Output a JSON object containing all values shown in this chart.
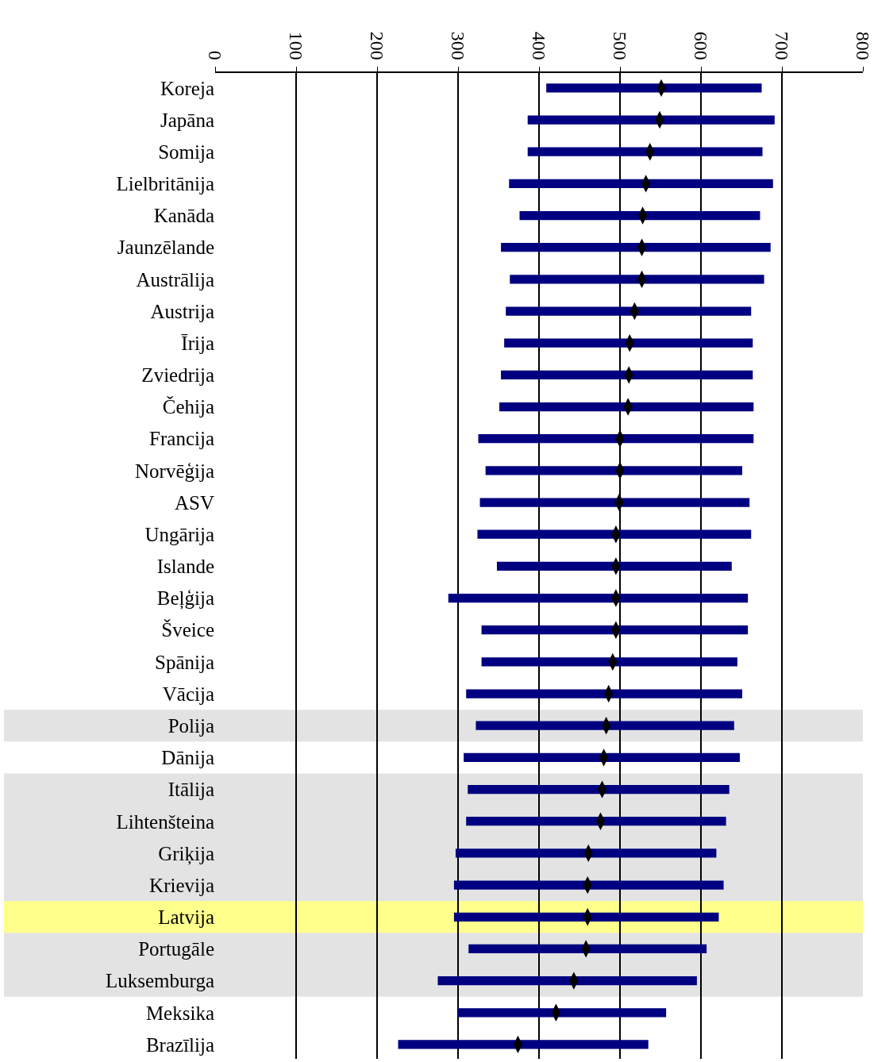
{
  "chart_data": {
    "type": "bar",
    "orientation": "horizontal",
    "categories": [
      "Koreja",
      "Japāna",
      "Somija",
      "Lielbritānija",
      "Kanāda",
      "Jaunzēlande",
      "Austrālija",
      "Austrija",
      "Īrija",
      "Zviedrija",
      "Čehija",
      "Francija",
      "Norvēģija",
      "ASV",
      "Ungārija",
      "Islande",
      "Beļģija",
      "Šveice",
      "Spānija",
      "Vācija",
      "Polija",
      "Dānija",
      "Itālija",
      "Lihtenšteina",
      "Griķija",
      "Krievija",
      "Latvija",
      "Portugāle",
      "Luksemburga",
      "Meksika",
      "Brazīlija"
    ],
    "series": [
      {
        "type": "bar",
        "color": "#000080",
        "base": [
          409,
          386,
          386,
          363,
          376,
          353,
          364,
          359,
          357,
          353,
          351,
          325,
          334,
          327,
          324,
          348,
          288,
          329,
          329,
          310,
          322,
          307,
          312,
          310,
          297,
          295,
          295,
          313,
          275,
          300,
          226
        ],
        "values": [
          266,
          305,
          290,
          326,
          297,
          333,
          314,
          303,
          307,
          311,
          314,
          340,
          317,
          333,
          338,
          290,
          370,
          329,
          316,
          341,
          319,
          341,
          323,
          321,
          322,
          333,
          327,
          294,
          320,
          257,
          309
        ]
      },
      {
        "type": "scatter",
        "color": "#000000",
        "marker": "diamond",
        "x": [
          "Koreja",
          "Japāna",
          "Somija",
          "Lielbritānija",
          "Kanāda",
          "Jaunzēlande",
          "Austrālija",
          "Austrija",
          "Īrija",
          "Zviedrija",
          "Čehija",
          "Francija",
          "Norvēģija",
          "ASV",
          "Ungārija",
          "Islande",
          "Beļģija",
          "Šveice",
          "Spānija",
          "Vācija",
          "Polija",
          "Dānija",
          "Itālija",
          "Lihtenšteina",
          "Griķija",
          "Krievija",
          "Latvija",
          "Portugāle",
          "Luksemburga",
          "Meksika",
          "Brazīlija"
        ],
        "values": [
          551,
          549,
          537,
          532,
          528,
          527,
          527,
          518,
          512,
          511,
          510,
          500,
          500,
          499,
          495,
          495,
          495,
          495,
          491,
          486,
          483,
          480,
          478,
          476,
          461,
          460,
          460,
          458,
          443,
          421,
          374
        ]
      }
    ],
    "xlim": [
      0,
      800
    ],
    "xticks": [
      0,
      100,
      200,
      300,
      400,
      500,
      600,
      700,
      800
    ],
    "grid": "x",
    "bands": [
      {
        "axis": "y",
        "from": "Polija",
        "to": "Polija",
        "color": "#c0c0c0"
      },
      {
        "axis": "y",
        "from": "Itālija",
        "to": "Krievija",
        "color": "#c0c0c0"
      },
      {
        "axis": "y",
        "from": "Latvija",
        "to": "Latvija",
        "color": "#ffff00"
      },
      {
        "axis": "y",
        "from": "Portugāle",
        "to": "Luksemburga",
        "color": "#c0c0c0"
      }
    ]
  }
}
